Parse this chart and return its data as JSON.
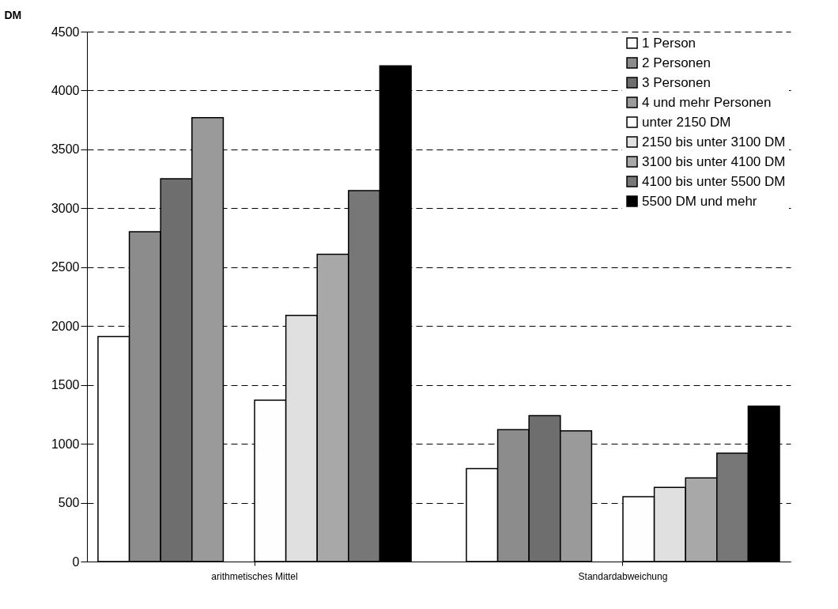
{
  "chart_data": {
    "type": "bar",
    "ylabel": "DM",
    "categories": [
      "arithmetisches Mittel",
      "Standardabweichung"
    ],
    "series": [
      {
        "name": "1 Person",
        "color": "#ffffff",
        "values": [
          1910,
          790
        ]
      },
      {
        "name": "2 Personen",
        "color": "#8c8c8c",
        "values": [
          2800,
          1120
        ]
      },
      {
        "name": "3 Personen",
        "color": "#6e6e6e",
        "values": [
          3250,
          1240
        ]
      },
      {
        "name": "4 und mehr Personen",
        "color": "#9a9a9a",
        "values": [
          3770,
          1110
        ]
      },
      {
        "name": "unter 2150 DM",
        "color": "#fefefe",
        "values": [
          1370,
          550
        ]
      },
      {
        "name": "2150 bis unter 3100 DM",
        "color": "#e0e0e0",
        "values": [
          2090,
          630
        ]
      },
      {
        "name": "3100 bis unter 4100 DM",
        "color": "#a8a8a8",
        "values": [
          2610,
          710
        ]
      },
      {
        "name": "4100 bis unter 5500 DM",
        "color": "#777777",
        "values": [
          3150,
          920
        ]
      },
      {
        "name": "5500 DM und mehr",
        "color": "#000000",
        "values": [
          4210,
          1320
        ]
      }
    ],
    "ylim": [
      0,
      4500
    ],
    "yticks": [
      0,
      500,
      1000,
      1500,
      2000,
      2500,
      3000,
      3500,
      4000,
      4500
    ],
    "grid": "y",
    "legend": "top right"
  }
}
